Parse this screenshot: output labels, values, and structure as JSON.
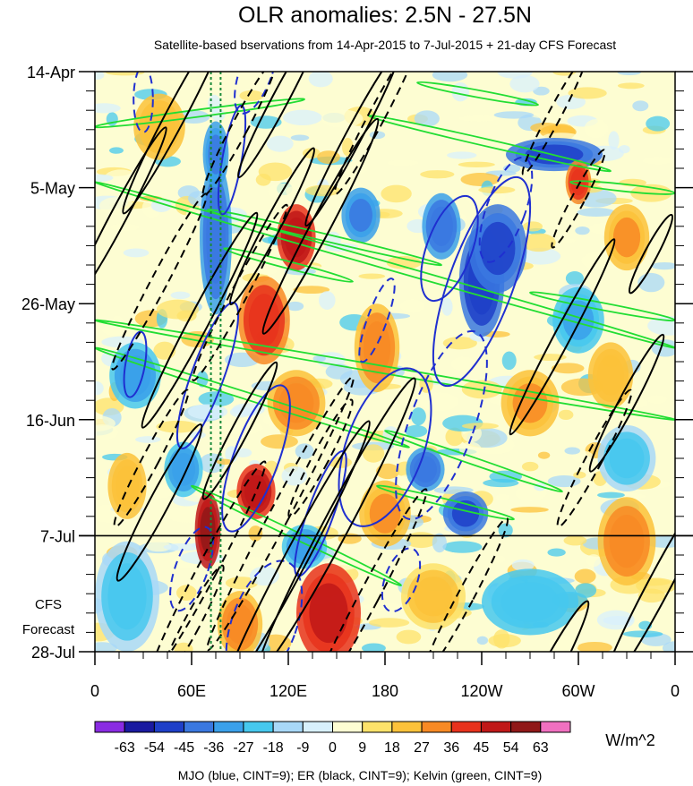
{
  "chart_data": {
    "type": "heatmap",
    "title": "OLR anomalies: 2.5N - 27.5N",
    "subtitle": "Satellite-based bservations from 14-Apr-2015 to 7-Jul-2015 + 21-day CFS Forecast",
    "x_tick_labels": [
      "0",
      "60E",
      "120E",
      "180",
      "120W",
      "60W",
      "0"
    ],
    "x_ticks_deg_east": [
      0,
      60,
      120,
      180,
      240,
      300,
      360
    ],
    "xlim_deg_east": [
      0,
      360
    ],
    "y_tick_labels": [
      "14-Apr",
      "5-May",
      "26-May",
      "16-Jun",
      "7-Jul",
      "28-Jul"
    ],
    "y_ticks_day": [
      0,
      21,
      42,
      63,
      84,
      105
    ],
    "ylim_day": [
      0,
      105
    ],
    "forecast_start_day": 84,
    "forecast_label_1": "CFS",
    "forecast_label_2": "Forecast",
    "colorbar": {
      "levels": [
        "-63",
        "-54",
        "-45",
        "-36",
        "-27",
        "-18",
        "-9",
        "0",
        "9",
        "18",
        "27",
        "36",
        "45",
        "54",
        "63"
      ],
      "colors": [
        "#8a2be2",
        "#1a1aa0",
        "#1e3fc8",
        "#3a78e0",
        "#3aa0ea",
        "#46c8ee",
        "#a8d8f8",
        "#d8f0fc",
        "#fdfdd2",
        "#fde26a",
        "#fcc23a",
        "#f88a24",
        "#e8321c",
        "#c01818",
        "#901818",
        "#f070c0"
      ],
      "units": "W/m^2"
    },
    "footer": "MJO (blue, CINT=9); ER (black, CINT=9); Kelvin (green, CINT=9)",
    "series_colors": {
      "mjo": "#1f2fd0",
      "er": "#000000",
      "kelvin": "#22dd33",
      "dotted_marker": "#1a8a3a"
    },
    "dotted_markers_deg_east": [
      72,
      78
    ],
    "anomaly_features": [
      {
        "lon": 240,
        "day": 38,
        "value": -50,
        "sx": 14,
        "sy": 10
      },
      {
        "lon": 250,
        "day": 32,
        "value": -45,
        "sx": 18,
        "sy": 8
      },
      {
        "lon": 215,
        "day": 28,
        "value": -40,
        "sx": 12,
        "sy": 6
      },
      {
        "lon": 165,
        "day": 26,
        "value": -35,
        "sx": 12,
        "sy": 5
      },
      {
        "lon": 285,
        "day": 15,
        "value": -45,
        "sx": 30,
        "sy": 3
      },
      {
        "lon": 230,
        "day": 80,
        "value": -45,
        "sx": 14,
        "sy": 4
      },
      {
        "lon": 205,
        "day": 72,
        "value": -40,
        "sx": 12,
        "sy": 4
      },
      {
        "lon": 130,
        "day": 86,
        "value": -30,
        "sx": 14,
        "sy": 4
      },
      {
        "lon": 75,
        "day": 30,
        "value": -40,
        "sx": 10,
        "sy": 14
      },
      {
        "lon": 75,
        "day": 15,
        "value": -35,
        "sx": 8,
        "sy": 6
      },
      {
        "lon": 25,
        "day": 55,
        "value": -28,
        "sx": 16,
        "sy": 6
      },
      {
        "lon": 55,
        "day": 72,
        "value": -30,
        "sx": 12,
        "sy": 5
      },
      {
        "lon": 300,
        "day": 45,
        "value": -25,
        "sx": 16,
        "sy": 6
      },
      {
        "lon": 330,
        "day": 70,
        "value": -18,
        "sx": 18,
        "sy": 6
      },
      {
        "lon": 20,
        "day": 95,
        "value": -20,
        "sx": 20,
        "sy": 10
      },
      {
        "lon": 270,
        "day": 96,
        "value": -22,
        "sx": 30,
        "sy": 6
      },
      {
        "lon": 125,
        "day": 30,
        "value": 50,
        "sx": 12,
        "sy": 6
      },
      {
        "lon": 105,
        "day": 45,
        "value": 40,
        "sx": 16,
        "sy": 8
      },
      {
        "lon": 100,
        "day": 76,
        "value": 50,
        "sx": 12,
        "sy": 5
      },
      {
        "lon": 70,
        "day": 83,
        "value": 54,
        "sx": 8,
        "sy": 7
      },
      {
        "lon": 145,
        "day": 98,
        "value": 45,
        "sx": 20,
        "sy": 9
      },
      {
        "lon": 125,
        "day": 60,
        "value": 30,
        "sx": 18,
        "sy": 6
      },
      {
        "lon": 300,
        "day": 20,
        "value": 40,
        "sx": 8,
        "sy": 4
      },
      {
        "lon": 330,
        "day": 30,
        "value": 25,
        "sx": 14,
        "sy": 6
      },
      {
        "lon": 175,
        "day": 50,
        "value": 28,
        "sx": 14,
        "sy": 8
      },
      {
        "lon": 330,
        "day": 85,
        "value": 30,
        "sx": 18,
        "sy": 8
      },
      {
        "lon": 20,
        "day": 75,
        "value": 20,
        "sx": 12,
        "sy": 6
      },
      {
        "lon": 180,
        "day": 80,
        "value": 25,
        "sx": 16,
        "sy": 6
      },
      {
        "lon": 210,
        "day": 95,
        "value": 18,
        "sx": 20,
        "sy": 6
      },
      {
        "lon": 90,
        "day": 100,
        "value": 30,
        "sx": 14,
        "sy": 6
      },
      {
        "lon": 270,
        "day": 60,
        "value": 25,
        "sx": 18,
        "sy": 6
      },
      {
        "lon": 40,
        "day": 10,
        "value": 20,
        "sx": 16,
        "sy": 6
      },
      {
        "lon": 320,
        "day": 55,
        "value": 20,
        "sx": 14,
        "sy": 6
      }
    ],
    "er_solid": [
      {
        "lon": 50,
        "day": 8,
        "rx": 6,
        "ry": 20,
        "rot": 28
      },
      {
        "lon": 115,
        "day": 5,
        "rx": 5,
        "ry": 16,
        "rot": 28
      },
      {
        "lon": 160,
        "day": 12,
        "rx": 5,
        "ry": 18,
        "rot": 28
      },
      {
        "lon": 140,
        "day": 28,
        "rx": 6,
        "ry": 22,
        "rot": 28
      },
      {
        "lon": 110,
        "day": 28,
        "rx": 5,
        "ry": 16,
        "rot": 28
      },
      {
        "lon": 15,
        "day": 26,
        "rx": 5,
        "ry": 18,
        "rot": 28
      },
      {
        "lon": 65,
        "day": 45,
        "rx": 6,
        "ry": 22,
        "rot": 28
      },
      {
        "lon": 290,
        "day": 48,
        "rx": 5,
        "ry": 20,
        "rot": 28
      },
      {
        "lon": 345,
        "day": 33,
        "rx": 4,
        "ry": 8,
        "rot": 28
      },
      {
        "lon": 150,
        "day": 82,
        "rx": 8,
        "ry": 30,
        "rot": 28
      },
      {
        "lon": 125,
        "day": 88,
        "rx": 7,
        "ry": 28,
        "rot": 28
      },
      {
        "lon": 40,
        "day": 78,
        "rx": 6,
        "ry": 16,
        "rot": 28
      },
      {
        "lon": 350,
        "day": 93,
        "rx": 7,
        "ry": 22,
        "rot": 28
      },
      {
        "lon": 330,
        "day": 60,
        "rx": 5,
        "ry": 14,
        "rot": 28
      },
      {
        "lon": 280,
        "day": 110,
        "rx": 6,
        "ry": 16,
        "rot": 28
      },
      {
        "lon": 90,
        "day": 65,
        "rx": 5,
        "ry": 14,
        "rot": 28
      }
    ],
    "er_dashed": [
      {
        "lon": 90,
        "day": 10,
        "rx": 5,
        "ry": 14,
        "rot": 28
      },
      {
        "lon": 175,
        "day": 8,
        "rx": 5,
        "ry": 16,
        "rot": 28
      },
      {
        "lon": 285,
        "day": 8,
        "rx": 4,
        "ry": 12,
        "rot": 28
      },
      {
        "lon": 40,
        "day": 38,
        "rx": 5,
        "ry": 18,
        "rot": 28
      },
      {
        "lon": 90,
        "day": 40,
        "rx": 5,
        "ry": 18,
        "rot": 28
      },
      {
        "lon": 300,
        "day": 23,
        "rx": 4,
        "ry": 10,
        "rot": 28
      },
      {
        "lon": 115,
        "day": 80,
        "rx": 6,
        "ry": 28,
        "rot": 28
      },
      {
        "lon": 70,
        "day": 90,
        "rx": 6,
        "ry": 22,
        "rot": 28
      },
      {
        "lon": 170,
        "day": 95,
        "rx": 6,
        "ry": 22,
        "rot": 28
      },
      {
        "lon": 230,
        "day": 95,
        "rx": 5,
        "ry": 16,
        "rot": 28
      },
      {
        "lon": 310,
        "day": 70,
        "rx": 5,
        "ry": 14,
        "rot": 28
      },
      {
        "lon": 35,
        "day": 70,
        "rx": 5,
        "ry": 14,
        "rot": 28
      },
      {
        "lon": 60,
        "day": 100,
        "rx": 5,
        "ry": 12,
        "rot": 28
      },
      {
        "lon": 140,
        "day": 70,
        "rx": 5,
        "ry": 12,
        "rot": 28
      }
    ],
    "mjo_solid": [
      {
        "lon": 240,
        "day": 38,
        "rx": 20,
        "ry": 20,
        "rot": 20
      },
      {
        "lon": 220,
        "day": 32,
        "rx": 14,
        "ry": 10,
        "rot": 20
      },
      {
        "lon": 180,
        "day": 68,
        "rx": 24,
        "ry": 15,
        "rot": 20
      },
      {
        "lon": 70,
        "day": 55,
        "rx": 10,
        "ry": 14,
        "rot": 20
      },
      {
        "lon": 100,
        "day": 70,
        "rx": 14,
        "ry": 14,
        "rot": 20
      },
      {
        "lon": 25,
        "day": 53,
        "rx": 6,
        "ry": 6,
        "rot": 10
      },
      {
        "lon": 85,
        "day": 16,
        "rx": 6,
        "ry": 10,
        "rot": 10
      },
      {
        "lon": 140,
        "day": 80,
        "rx": 8,
        "ry": 12,
        "rot": 20
      }
    ],
    "mjo_dashed": [
      {
        "lon": 30,
        "day": 5,
        "rx": 6,
        "ry": 6,
        "rot": 0
      },
      {
        "lon": 100,
        "day": 0,
        "rx": 10,
        "ry": 8,
        "rot": 20
      },
      {
        "lon": 255,
        "day": 25,
        "rx": 12,
        "ry": 10,
        "rot": 20
      },
      {
        "lon": 215,
        "day": 64,
        "rx": 20,
        "ry": 18,
        "rot": 20
      },
      {
        "lon": 105,
        "day": 100,
        "rx": 20,
        "ry": 12,
        "rot": 20
      },
      {
        "lon": 190,
        "day": 92,
        "rx": 10,
        "ry": 6,
        "rot": 20
      },
      {
        "lon": 175,
        "day": 45,
        "rx": 6,
        "ry": 8,
        "rot": 20
      },
      {
        "lon": 60,
        "day": 90,
        "rx": 10,
        "ry": 8,
        "rot": 20
      }
    ],
    "kelvin_bands": [
      {
        "lon1": 0,
        "day1": 10,
        "lon2": 130,
        "day2": 5
      },
      {
        "lon1": 170,
        "day1": 8,
        "lon2": 320,
        "day2": 18
      },
      {
        "lon1": 200,
        "day1": 2,
        "lon2": 275,
        "day2": 6
      },
      {
        "lon1": 0,
        "day1": 20,
        "lon2": 360,
        "day2": 50
      },
      {
        "lon1": 70,
        "day1": 25,
        "lon2": 215,
        "day2": 35
      },
      {
        "lon1": 80,
        "day1": 32,
        "lon2": 160,
        "day2": 38
      },
      {
        "lon1": 0,
        "day1": 45,
        "lon2": 360,
        "day2": 63
      },
      {
        "lon1": 0,
        "day1": 50,
        "lon2": 195,
        "day2": 68
      },
      {
        "lon1": 180,
        "day1": 65,
        "lon2": 290,
        "day2": 76
      },
      {
        "lon1": 175,
        "day1": 75,
        "lon2": 260,
        "day2": 81
      },
      {
        "lon1": 60,
        "day1": 75,
        "lon2": 190,
        "day2": 93
      },
      {
        "lon1": 295,
        "day1": 20,
        "lon2": 360,
        "day2": 22
      },
      {
        "lon1": 270,
        "day1": 40,
        "lon2": 360,
        "day2": 45
      }
    ]
  }
}
